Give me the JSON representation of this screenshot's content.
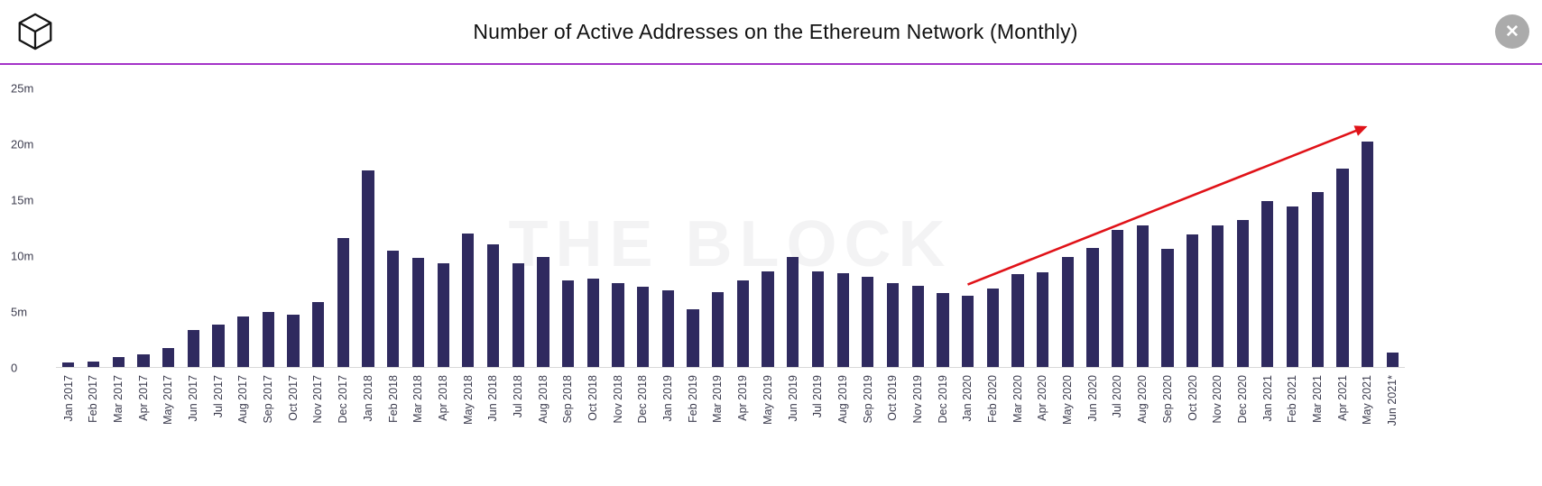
{
  "header": {
    "title": "Number of Active Addresses on the Ethereum Network (Monthly)",
    "close_label": "✕"
  },
  "watermark": "THE BLOCK",
  "colors": {
    "accent_line": "#a434c8",
    "bar": "#2f2a5f",
    "arrow": "#e01218"
  },
  "chart_data": {
    "type": "bar",
    "title": "Number of Active Addresses on the Ethereum Network (Monthly)",
    "unit": "millions of addresses",
    "ylim": [
      0,
      25
    ],
    "ytick_values": [
      0,
      5,
      10,
      15,
      20,
      25
    ],
    "ytick_labels": [
      "0",
      "5m",
      "10m",
      "15m",
      "20m",
      "25m"
    ],
    "grid": false,
    "bar_color": "#2f2a5f",
    "categories": [
      "Jan 2017",
      "Feb 2017",
      "Mar 2017",
      "Apr 2017",
      "May 2017",
      "Jun 2017",
      "Jul 2017",
      "Aug 2017",
      "Sep 2017",
      "Oct 2017",
      "Nov 2017",
      "Dec 2017",
      "Jan 2018",
      "Feb 2018",
      "Mar 2018",
      "Apr 2018",
      "May 2018",
      "Jun 2018",
      "Jul 2018",
      "Aug 2018",
      "Sep 2018",
      "Oct 2018",
      "Nov 2018",
      "Dec 2018",
      "Jan 2019",
      "Feb 2019",
      "Mar 2019",
      "Apr 2019",
      "May 2019",
      "Jun 2019",
      "Jul 2019",
      "Aug 2019",
      "Sep 2019",
      "Oct 2019",
      "Nov 2019",
      "Dec 2019",
      "Jan 2020",
      "Feb 2020",
      "Mar 2020",
      "Apr 2020",
      "May 2020",
      "Jun 2020",
      "Jul 2020",
      "Aug 2020",
      "Sep 2020",
      "Oct 2020",
      "Nov 2020",
      "Dec 2020",
      "Jan 2021",
      "Feb 2021",
      "Mar 2021",
      "Apr 2021",
      "May 2021",
      "Jun 2021*"
    ],
    "values": [
      0.4,
      0.5,
      0.9,
      1.1,
      1.7,
      3.3,
      3.8,
      4.5,
      4.9,
      4.7,
      5.8,
      11.6,
      17.6,
      10.4,
      9.8,
      9.3,
      12.0,
      11.0,
      9.3,
      9.9,
      7.8,
      7.9,
      7.5,
      7.2,
      6.9,
      5.2,
      6.7,
      7.8,
      8.6,
      9.9,
      8.6,
      8.4,
      8.1,
      7.5,
      7.3,
      6.6,
      6.4,
      7.0,
      8.3,
      8.5,
      9.9,
      10.7,
      12.3,
      12.7,
      10.6,
      11.9,
      12.7,
      13.2,
      14.9,
      14.4,
      15.7,
      17.8,
      20.2,
      1.3
    ],
    "annotation": {
      "type": "arrow",
      "color": "#e01218",
      "from": {
        "category": "Jan 2020",
        "value": 7.4
      },
      "to": {
        "category": "May 2021",
        "value": 21.6
      }
    },
    "legend": "none"
  }
}
